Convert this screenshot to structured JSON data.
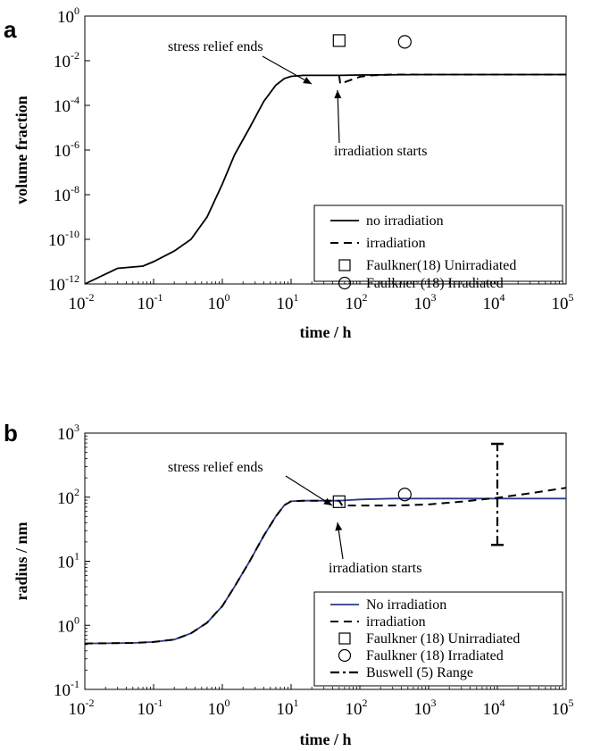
{
  "chart_data": [
    {
      "panel": "a",
      "type": "line",
      "xlabel": "time / h",
      "ylabel": "volume fraction",
      "xscale": "log",
      "yscale": "log",
      "xlim": [
        0.01,
        100000
      ],
      "ylim": [
        1e-12,
        1
      ],
      "x_ticks": [
        {
          "base": "10",
          "exp": "-2",
          "value": 0.01
        },
        {
          "base": "10",
          "exp": "-1",
          "value": 0.1
        },
        {
          "base": "10",
          "exp": "0",
          "value": 1
        },
        {
          "base": "10",
          "exp": "1",
          "value": 10
        },
        {
          "base": "10",
          "exp": "2",
          "value": 100
        },
        {
          "base": "10",
          "exp": "3",
          "value": 1000
        },
        {
          "base": "10",
          "exp": "4",
          "value": 10000
        },
        {
          "base": "10",
          "exp": "5",
          "value": 100000
        }
      ],
      "y_ticks": [
        {
          "base": "10",
          "exp": "-12",
          "value": 1e-12
        },
        {
          "base": "10",
          "exp": "-10",
          "value": 1e-10
        },
        {
          "base": "10",
          "exp": "-8",
          "value": 1e-08
        },
        {
          "base": "10",
          "exp": "-6",
          "value": 1e-06
        },
        {
          "base": "10",
          "exp": "-4",
          "value": 0.0001
        },
        {
          "base": "10",
          "exp": "-2",
          "value": 0.01
        },
        {
          "base": "10",
          "exp": "0",
          "value": 1
        }
      ],
      "legend_position": "bottom-right",
      "annotations": [
        {
          "text": "stress relief ends",
          "x": 50,
          "y": 0.001
        },
        {
          "text": "irradiation starts",
          "x": 50,
          "y": 0.00075
        }
      ],
      "series": [
        {
          "name": "no irradiation",
          "style": "solid",
          "color": "#000000",
          "x": [
            0.01,
            0.03,
            0.07,
            0.1,
            0.2,
            0.35,
            0.6,
            1,
            1.5,
            2.5,
            4,
            6,
            8,
            10,
            15,
            25,
            40,
            50,
            100,
            1000,
            100000
          ],
          "y": [
            1e-12,
            5e-12,
            6.3e-12,
            1e-11,
            3e-11,
            1e-10,
            1e-09,
            3e-08,
            6e-07,
            1e-05,
            0.00015,
            0.0008,
            0.0016,
            0.002,
            0.0022,
            0.0022,
            0.0022,
            0.0022,
            0.0023,
            0.0024,
            0.0024
          ]
        },
        {
          "name": "irradiation",
          "style": "dashed",
          "color": "#000000",
          "x": [
            50,
            52,
            60,
            80,
            100,
            150,
            300,
            1000,
            100000
          ],
          "y": [
            0.0022,
            0.0009,
            0.0011,
            0.0015,
            0.0019,
            0.0022,
            0.0024,
            0.0024,
            0.0024
          ]
        },
        {
          "name": "Faulkner(18) Unirradiated",
          "style": "square-marker",
          "color": "#000000",
          "x": [
            50
          ],
          "y": [
            0.08
          ]
        },
        {
          "name": "Faulkner (18) Irradiated",
          "style": "circle-marker",
          "color": "#000000",
          "x": [
            450
          ],
          "y": [
            0.07
          ]
        }
      ]
    },
    {
      "panel": "b",
      "type": "line",
      "xlabel": "time / h",
      "ylabel": "radius / nm",
      "xscale": "log",
      "yscale": "log",
      "xlim": [
        0.01,
        100000
      ],
      "ylim": [
        0.1,
        1000
      ],
      "x_ticks": [
        {
          "base": "10",
          "exp": "-2",
          "value": 0.01
        },
        {
          "base": "10",
          "exp": "-1",
          "value": 0.1
        },
        {
          "base": "10",
          "exp": "0",
          "value": 1
        },
        {
          "base": "10",
          "exp": "1",
          "value": 10
        },
        {
          "base": "10",
          "exp": "2",
          "value": 100
        },
        {
          "base": "10",
          "exp": "3",
          "value": 1000
        },
        {
          "base": "10",
          "exp": "4",
          "value": 10000
        },
        {
          "base": "10",
          "exp": "5",
          "value": 100000
        }
      ],
      "y_ticks": [
        {
          "base": "10",
          "exp": "-1",
          "value": 0.1
        },
        {
          "base": "10",
          "exp": "0",
          "value": 1
        },
        {
          "base": "10",
          "exp": "1",
          "value": 10
        },
        {
          "base": "10",
          "exp": "2",
          "value": 100
        },
        {
          "base": "10",
          "exp": "3",
          "value": 1000
        }
      ],
      "legend_position": "bottom-right",
      "annotations": [
        {
          "text": "stress relief ends",
          "x": 50,
          "y": 85
        },
        {
          "text": "irradiation starts",
          "x": 50,
          "y": 78
        }
      ],
      "series": [
        {
          "name": "No irradiation",
          "style": "solid",
          "color": "#2b3a8c",
          "x": [
            0.01,
            0.05,
            0.1,
            0.2,
            0.35,
            0.6,
            1,
            1.5,
            2.5,
            4,
            6,
            8,
            10,
            15,
            30,
            50,
            100,
            300,
            1000,
            100000
          ],
          "y": [
            0.52,
            0.53,
            0.55,
            0.6,
            0.75,
            1.1,
            2,
            4,
            10,
            25,
            50,
            75,
            86,
            88,
            88,
            88,
            92,
            95,
            95,
            95
          ]
        },
        {
          "name": "irradiation",
          "style": "dashed",
          "color": "#000000",
          "x": [
            0.01,
            0.05,
            0.1,
            0.2,
            0.35,
            0.6,
            1,
            1.5,
            2.5,
            4,
            6,
            8,
            10,
            15,
            30,
            50,
            55,
            70,
            100,
            300,
            500,
            1000,
            3000,
            10000,
            30000,
            100000
          ],
          "y": [
            0.52,
            0.53,
            0.55,
            0.6,
            0.75,
            1.1,
            2,
            4,
            10,
            25,
            50,
            75,
            86,
            88,
            88,
            88,
            75,
            74,
            74,
            74,
            75,
            77,
            85,
            98,
            115,
            140
          ]
        },
        {
          "name": "Faulkner (18) Unirradiated",
          "style": "square-marker",
          "color": "#000000",
          "x": [
            50
          ],
          "y": [
            85
          ]
        },
        {
          "name": "Faulkner (18) Irradiated",
          "style": "circle-marker",
          "color": "#000000",
          "x": [
            450
          ],
          "y": [
            110
          ]
        },
        {
          "name": "Buswell (5) Range",
          "style": "dash-dot-errorbar",
          "color": "#000000",
          "x": [
            10000,
            10000
          ],
          "y": [
            18,
            680
          ]
        }
      ]
    }
  ]
}
